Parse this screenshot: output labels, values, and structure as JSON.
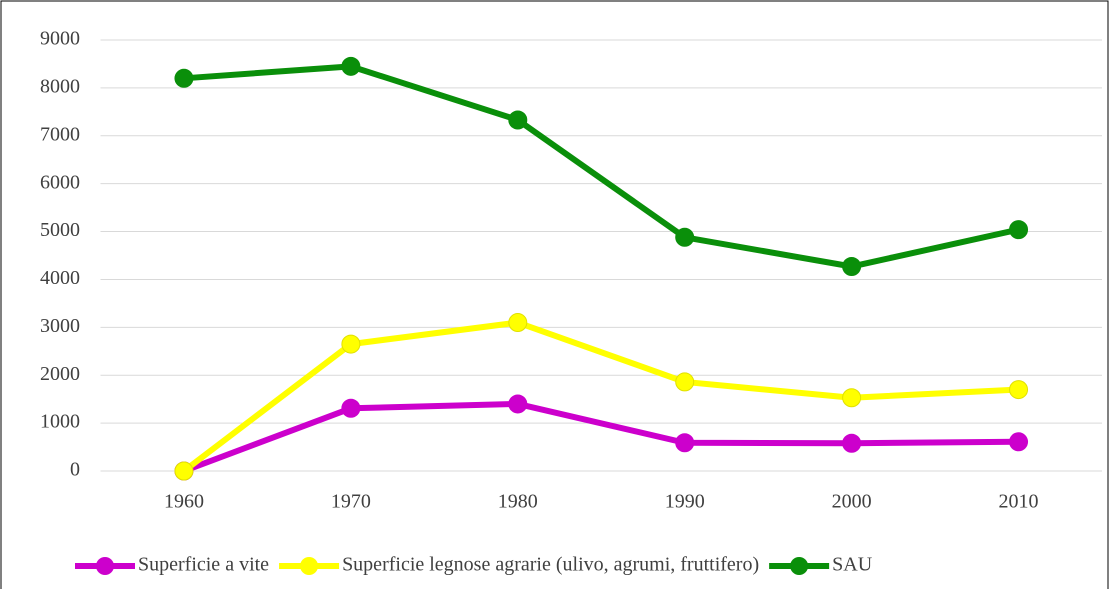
{
  "chart_data": {
    "type": "line",
    "categories": [
      "1960",
      "1970",
      "1980",
      "1990",
      "2000",
      "2010"
    ],
    "series": [
      {
        "name": "Superficie a vite",
        "color": "#cc00cc",
        "values": [
          0,
          1310,
          1400,
          590,
          580,
          610
        ]
      },
      {
        "name": "Superficie legnose agrarie (ulivo, agrumi, fruttifero)",
        "color": "#ffff00",
        "values": [
          0,
          2650,
          3100,
          1860,
          1530,
          1700
        ]
      },
      {
        "name": "SAU",
        "color": "#0a8f0a",
        "values": [
          8200,
          8450,
          7330,
          4880,
          4270,
          5040
        ]
      }
    ],
    "ylim": [
      0,
      9000
    ],
    "yticks": [
      0,
      1000,
      2000,
      3000,
      4000,
      5000,
      6000,
      7000,
      8000,
      9000
    ],
    "grid": true,
    "legend": "bottom"
  }
}
